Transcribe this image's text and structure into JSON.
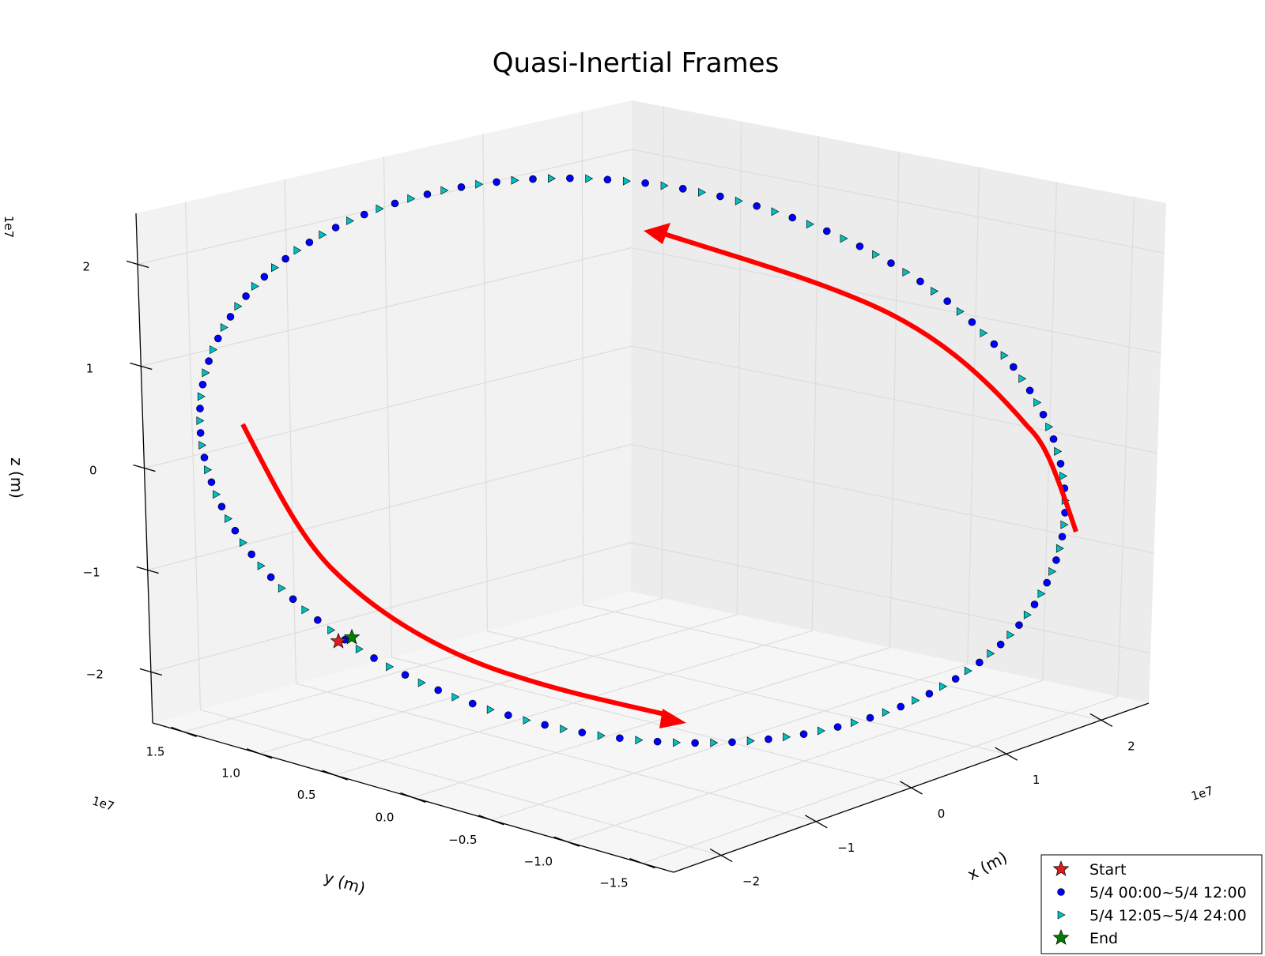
{
  "chart_data": {
    "type": "scatter",
    "projection": "3d",
    "title": "Quasi-Inertial Frames",
    "xlabel": "x (m)",
    "ylabel": "y (m)",
    "zlabel": "z (m)",
    "x_offset_label": "1e7",
    "y_offset_label": "1e7",
    "z_offset_label": "1e7",
    "xlim": [
      -2.6,
      2.6
    ],
    "ylim": [
      -1.7,
      1.7
    ],
    "zlim": [
      -2.6,
      2.6
    ],
    "x_ticks": [
      "−2",
      "−1",
      "0",
      "1",
      "2"
    ],
    "y_ticks": [
      "1.5",
      "1.0",
      "0.5",
      "0.0",
      "−0.5",
      "−1.0",
      "−1.5"
    ],
    "z_ticks": [
      "2",
      "1",
      "0",
      "−1",
      "−2"
    ],
    "grid": true,
    "legend_placement": "bottom-right",
    "orbit": {
      "semi_axis_scaled": 2.35,
      "points_per_half_day": 72,
      "start_phase_deg": 0
    },
    "series": [
      {
        "name": "Start",
        "marker": "star",
        "color": "#e41a1c"
      },
      {
        "name": "5/4 00:00~5/4 12:00",
        "marker": "circle",
        "color": "#0000ff"
      },
      {
        "name": "5/4 12:05~5/4 24:00",
        "marker": "triangle-right",
        "color": "#00bfbf"
      },
      {
        "name": "End",
        "marker": "star",
        "color": "#008000"
      }
    ],
    "annotations": [
      {
        "kind": "arrow",
        "color": "#ff0000",
        "meaning": "direction of motion (upper right)"
      },
      {
        "kind": "arrow",
        "color": "#ff0000",
        "meaning": "direction of motion (lower left)"
      }
    ]
  }
}
